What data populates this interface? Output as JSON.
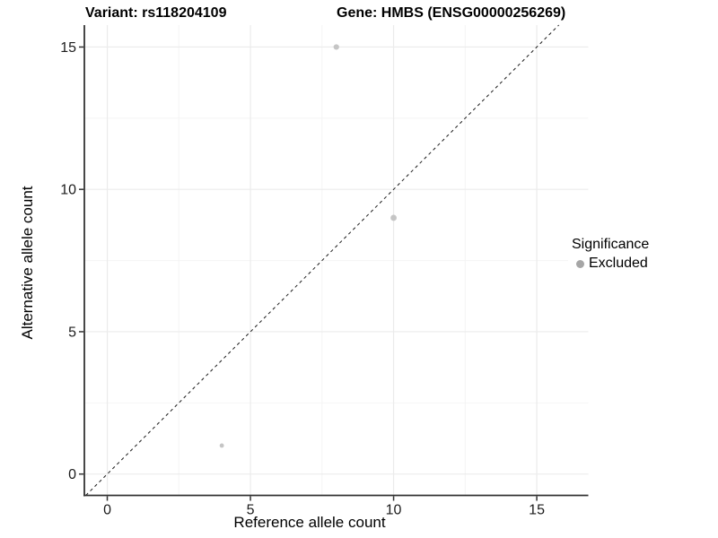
{
  "header": {
    "variant_title": "Variant: rs118204109",
    "gene_title": "Gene: HMBS (ENSG00000256269)"
  },
  "colors": {
    "background": "#ffffff",
    "grid_major": "#ebebeb",
    "grid_minor": "#f4f4f4",
    "axis_line": "#333333",
    "tick_label": "#1c1c1c",
    "identity_line": "#1a1a1a",
    "point": "#c5c5c5",
    "legend_point": "#a6a6a6"
  },
  "chart_data": {
    "type": "scatter",
    "title_left": "Variant: rs118204109",
    "title_right": "Gene: HMBS (ENSG00000256269)",
    "xlabel": "Reference allele count",
    "ylabel": "Alternative allele count",
    "xlim": [
      -0.8,
      16.8
    ],
    "ylim": [
      -0.75,
      15.77
    ],
    "xticks": [
      0,
      5,
      10,
      15
    ],
    "yticks": [
      0,
      5,
      10,
      15
    ],
    "xticks_minor": [
      2.5,
      7.5,
      12.5
    ],
    "yticks_minor": [
      2.5,
      7.5,
      12.5
    ],
    "grid": true,
    "identity_line": {
      "slope": 1,
      "intercept": 0,
      "style": "dashed"
    },
    "series": [
      {
        "name": "Excluded",
        "points": [
          {
            "x": 8,
            "y": 15,
            "r": 3.1
          },
          {
            "x": 10,
            "y": 9,
            "r": 3.4
          },
          {
            "x": 4,
            "y": 1,
            "r": 2.4
          }
        ]
      }
    ],
    "legend": {
      "title": "Significance",
      "position": "right-center-inset",
      "entries": [
        {
          "label": "Excluded"
        }
      ]
    }
  }
}
